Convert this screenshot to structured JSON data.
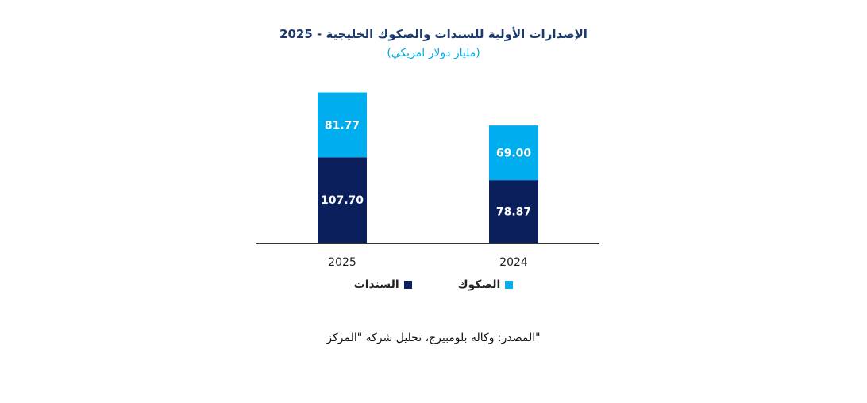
{
  "title": "الإصدارات الأولية للسندات والصكوك الخليجية - 2025",
  "subtitle": "(مليار دولار امريكي)",
  "source": "المصدر: وكالة بلومبيرج، تحليل شركة \"المركز\"",
  "colors": {
    "bonds": "#0a1f5c",
    "sukuk": "#00aeef",
    "axis": "#333333"
  },
  "chart_data": {
    "type": "bar",
    "stacked": true,
    "categories": [
      "2025",
      "2024"
    ],
    "series": [
      {
        "name": "السندات",
        "values": [
          107.7,
          78.87
        ],
        "labels": [
          "107.70",
          "78.87"
        ]
      },
      {
        "name": "الصكوك",
        "values": [
          81.77,
          69.0
        ],
        "labels": [
          "81.77",
          "69.00"
        ]
      }
    ],
    "legend_position": "bottom",
    "grid": false,
    "ylim": [
      0,
      190
    ]
  }
}
